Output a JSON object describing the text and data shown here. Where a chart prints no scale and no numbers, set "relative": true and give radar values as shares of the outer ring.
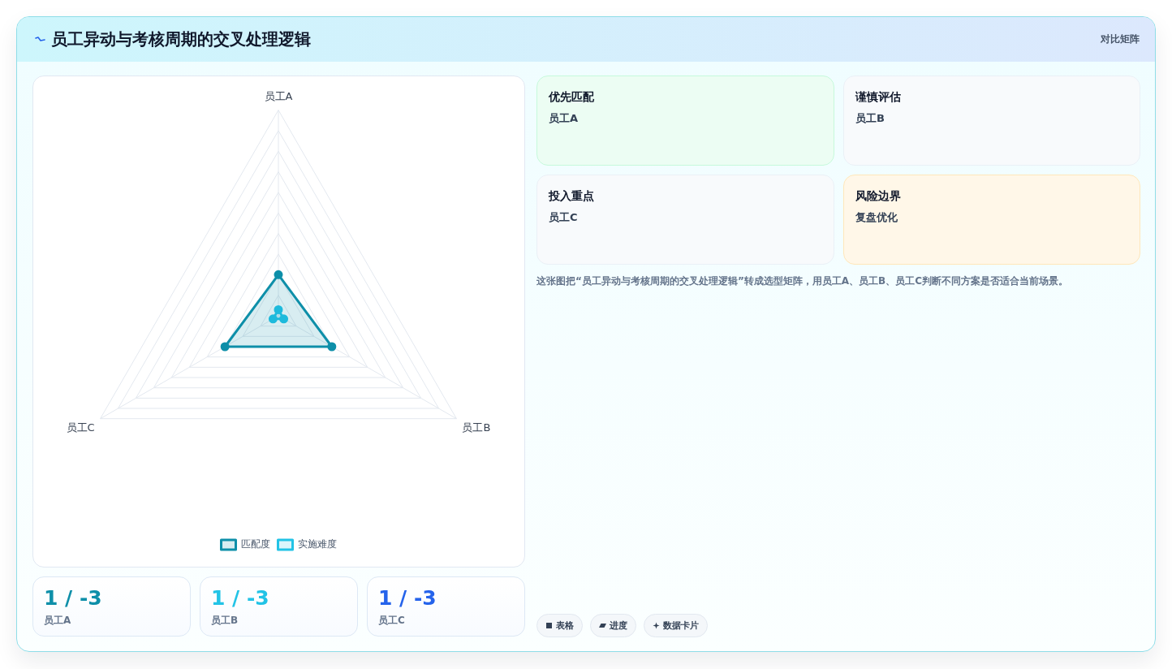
{
  "chart_data": [
    {
      "type": "radar",
      "title": "员工异动与考核周期的交叉处理逻辑",
      "categories": [
        "员工A",
        "员工B",
        "员工C"
      ],
      "series": [
        {
          "name": "匹配度",
          "color": "#0e8fa9",
          "values": [
            0.2,
            0.3,
            0.3
          ]
        },
        {
          "name": "实施难度",
          "color": "#22c3e6",
          "values": [
            0.03,
            0.03,
            0.03
          ]
        }
      ],
      "relative": true,
      "grid": true,
      "legend": "bottom",
      "marker": "circle"
    },
    {
      "type": "other",
      "categories": [
        "员工A",
        "员工B",
        "员工C"
      ],
      "annotations": [
        "1 / -3",
        "1 / -3",
        "1 / -3"
      ]
    },
    {
      "type": "other",
      "title": "对比矩阵",
      "categories": [
        "优先匹配",
        "谨慎评估",
        "投入重点",
        "风险边界"
      ],
      "annotations": [
        "员工A",
        "员工B",
        "员工C",
        "复盘优化",
        "这张图把“员工异动与考核周期的交叉处理逻辑”转成选型矩阵，用员工A、员工B、员工C判断不同方案是否适合当前场景。"
      ],
      "colors": [
        "#ecfdf3",
        "#f8fafc",
        "#f8fafc",
        "#fff7e8"
      ]
    },
    {
      "type": "other",
      "annotations": [
        "表格",
        "进度",
        "数据卡片"
      ]
    }
  ]
}
